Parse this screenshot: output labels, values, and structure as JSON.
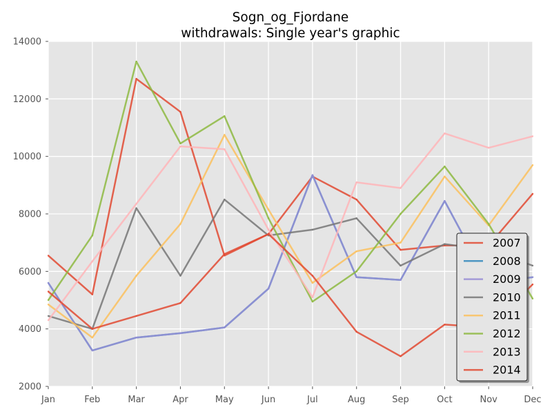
{
  "chart_data": {
    "type": "line",
    "title_line1": "Sogn_og_Fjordane",
    "title_line2": "withdrawals: Single year's graphic",
    "xlabel": "",
    "ylabel": "",
    "categories": [
      "Jan",
      "Feb",
      "Mar",
      "Apr",
      "May",
      "Jun",
      "Jul",
      "Aug",
      "Sep",
      "Oct",
      "Nov",
      "Dec"
    ],
    "ylim": [
      2000,
      14000
    ],
    "yticks": [
      2000,
      4000,
      6000,
      8000,
      10000,
      12000,
      14000
    ],
    "grid": true,
    "legend_position": "lower right",
    "series": [
      {
        "name": "2007",
        "color": "#e24a33",
        "values": [
          6550,
          5200,
          12700,
          11550,
          6550,
          7300,
          9300,
          8500,
          6750,
          6900,
          6900,
          8700
        ]
      },
      {
        "name": "2008",
        "color": "#348abd",
        "values": [
          5600,
          3250,
          3700,
          3850,
          4050,
          5400,
          9350,
          5800,
          5700,
          8450,
          5600,
          5800
        ]
      },
      {
        "name": "2009",
        "color": "#988ed5",
        "values": [
          5600,
          3250,
          3700,
          3850,
          4050,
          5400,
          9350,
          5800,
          5700,
          8450,
          5600,
          5800
        ]
      },
      {
        "name": "2010",
        "color": "#777777",
        "values": [
          4450,
          4000,
          8200,
          5850,
          8500,
          7250,
          7450,
          7850,
          6200,
          6950,
          6750,
          6200
        ]
      },
      {
        "name": "2011",
        "color": "#fbc15e",
        "values": [
          4850,
          3700,
          5850,
          7650,
          10750,
          8150,
          5600,
          6700,
          7000,
          9300,
          7600,
          9700
        ]
      },
      {
        "name": "2012",
        "color": "#8eba42",
        "values": [
          5000,
          7250,
          13300,
          10450,
          11400,
          7850,
          4950,
          6000,
          8000,
          9650,
          7650,
          5050
        ]
      },
      {
        "name": "2013",
        "color": "#ffb5b8",
        "values": [
          4300,
          6350,
          8350,
          10350,
          10250,
          7450,
          5100,
          9100,
          8900,
          10800,
          10300,
          10700
        ]
      },
      {
        "name": "2014",
        "color": "#e24a33",
        "values": [
          5300,
          4000,
          4450,
          4900,
          6600,
          7300,
          5850,
          3900,
          3050,
          4150,
          4050,
          5550
        ]
      }
    ]
  }
}
